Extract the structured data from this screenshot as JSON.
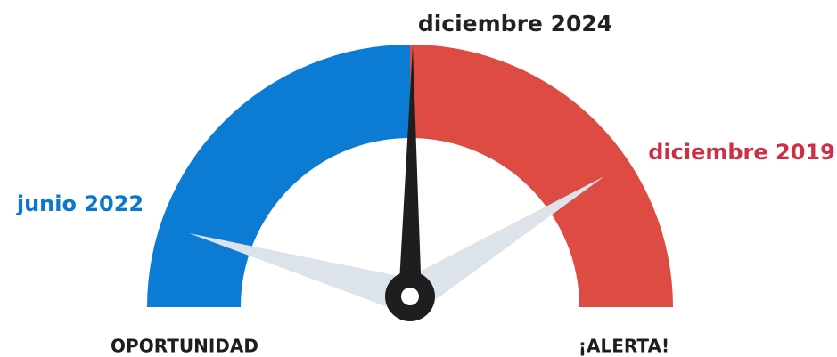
{
  "gauge": {
    "left_label": "OPORTUNIDAD",
    "right_label": "¡ALERTA!",
    "needles": [
      {
        "label": "diciembre 2024"
      },
      {
        "label": "junio 2022"
      },
      {
        "label": "diciembre 2019"
      }
    ]
  }
}
